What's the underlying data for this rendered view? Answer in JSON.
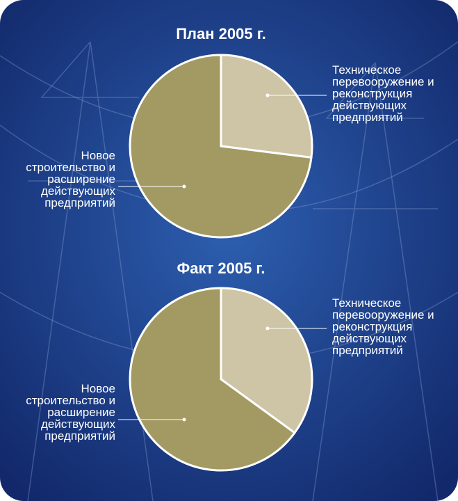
{
  "chart_data": [
    {
      "type": "pie",
      "title": "План 2005 г.",
      "categories": [
        "Техническое перевооружение и реконструкция действующих предприятий",
        "Новое строительство и расширение действующих предприятий"
      ],
      "values": [
        27,
        73
      ],
      "colors": [
        "#cdc5a6",
        "#a39a63"
      ]
    },
    {
      "type": "pie",
      "title": "Факт 2005 г.",
      "categories": [
        "Техническое перевооружение и реконструкция действующих предприятий",
        "Новое строительство и расширение действующих предприятий"
      ],
      "values": [
        35,
        65
      ],
      "colors": [
        "#cdc5a6",
        "#a39a63"
      ]
    }
  ]
}
